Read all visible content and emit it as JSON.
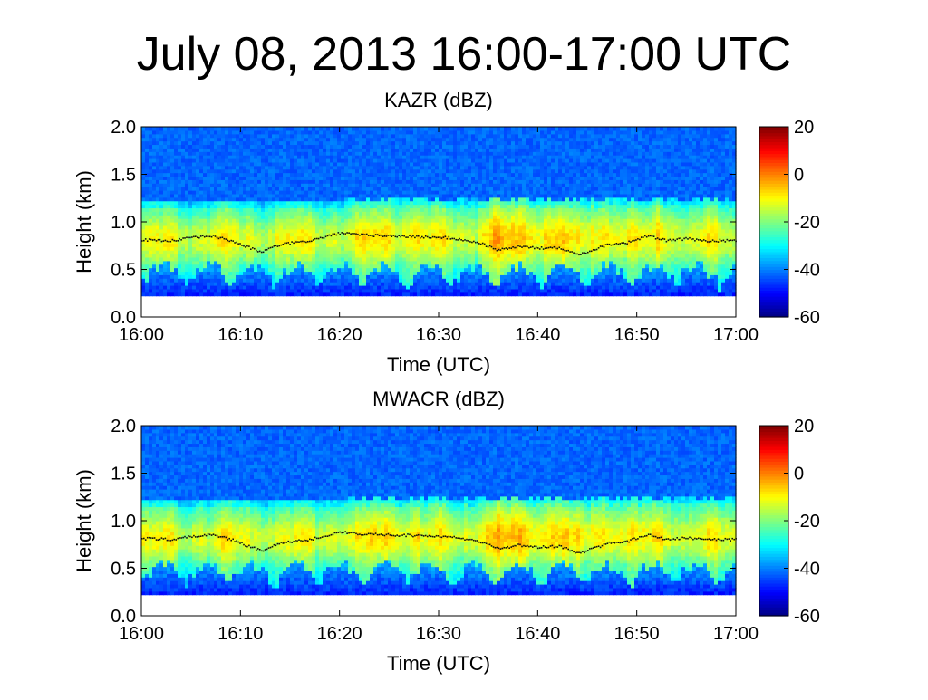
{
  "slide": {
    "title": "July 08, 2013 16:00-17:00 UTC"
  },
  "chart_data": [
    {
      "type": "heatmap",
      "title": "KAZR (dBZ)",
      "xlabel": "Time (UTC)",
      "ylabel": "Height (km)",
      "x_ticks": [
        "16:00",
        "16:10",
        "16:20",
        "16:30",
        "16:40",
        "16:50",
        "17:00"
      ],
      "y_ticks": [
        "0.0",
        "0.5",
        "1.0",
        "1.5",
        "2.0"
      ],
      "ylim": [
        0,
        2
      ],
      "xlim_minutes": [
        0,
        60
      ],
      "colorbar": {
        "ticks": [
          "20",
          "0",
          "-20",
          "-40",
          "-60"
        ],
        "range": [
          -60,
          20
        ],
        "colormap": "jet"
      },
      "cloud_layer": {
        "base_km": 0.22,
        "top_km": 1.22,
        "background_dbz": -42
      },
      "black_line_height_km": [
        [
          0,
          0.81
        ],
        [
          3,
          0.8
        ],
        [
          5,
          0.83
        ],
        [
          7,
          0.85
        ],
        [
          9,
          0.8
        ],
        [
          11,
          0.72
        ],
        [
          12,
          0.68
        ],
        [
          14,
          0.76
        ],
        [
          17,
          0.8
        ],
        [
          20,
          0.88
        ],
        [
          22,
          0.86
        ],
        [
          25,
          0.85
        ],
        [
          28,
          0.84
        ],
        [
          31,
          0.83
        ],
        [
          34,
          0.78
        ],
        [
          36,
          0.7
        ],
        [
          38,
          0.74
        ],
        [
          40,
          0.72
        ],
        [
          42,
          0.73
        ],
        [
          43,
          0.7
        ],
        [
          44,
          0.65
        ],
        [
          46,
          0.72
        ],
        [
          47,
          0.76
        ],
        [
          49,
          0.78
        ],
        [
          51,
          0.85
        ],
        [
          53,
          0.8
        ],
        [
          55,
          0.82
        ],
        [
          57,
          0.8
        ],
        [
          60,
          0.8
        ]
      ]
    },
    {
      "type": "heatmap",
      "title": "MWACR (dBZ)",
      "xlabel": "Time (UTC)",
      "ylabel": "Height (km)",
      "x_ticks": [
        "16:00",
        "16:10",
        "16:20",
        "16:30",
        "16:40",
        "16:50",
        "17:00"
      ],
      "y_ticks": [
        "0.0",
        "0.5",
        "1.0",
        "1.5",
        "2.0"
      ],
      "ylim": [
        0,
        2
      ],
      "xlim_minutes": [
        0,
        60
      ],
      "colorbar": {
        "ticks": [
          "20",
          "0",
          "-20",
          "-40",
          "-60"
        ],
        "range": [
          -60,
          20
        ],
        "colormap": "jet"
      },
      "cloud_layer": {
        "base_km": 0.22,
        "top_km": 1.22,
        "background_dbz": -42
      },
      "black_line_height_km": [
        [
          0,
          0.81
        ],
        [
          3,
          0.8
        ],
        [
          5,
          0.83
        ],
        [
          7,
          0.85
        ],
        [
          9,
          0.8
        ],
        [
          11,
          0.72
        ],
        [
          12,
          0.68
        ],
        [
          14,
          0.76
        ],
        [
          17,
          0.8
        ],
        [
          20,
          0.88
        ],
        [
          22,
          0.86
        ],
        [
          25,
          0.85
        ],
        [
          28,
          0.84
        ],
        [
          31,
          0.83
        ],
        [
          34,
          0.78
        ],
        [
          36,
          0.7
        ],
        [
          38,
          0.74
        ],
        [
          40,
          0.72
        ],
        [
          42,
          0.73
        ],
        [
          43,
          0.7
        ],
        [
          44,
          0.65
        ],
        [
          46,
          0.72
        ],
        [
          47,
          0.76
        ],
        [
          49,
          0.78
        ],
        [
          51,
          0.85
        ],
        [
          53,
          0.8
        ],
        [
          55,
          0.82
        ],
        [
          57,
          0.8
        ],
        [
          60,
          0.8
        ]
      ]
    }
  ]
}
